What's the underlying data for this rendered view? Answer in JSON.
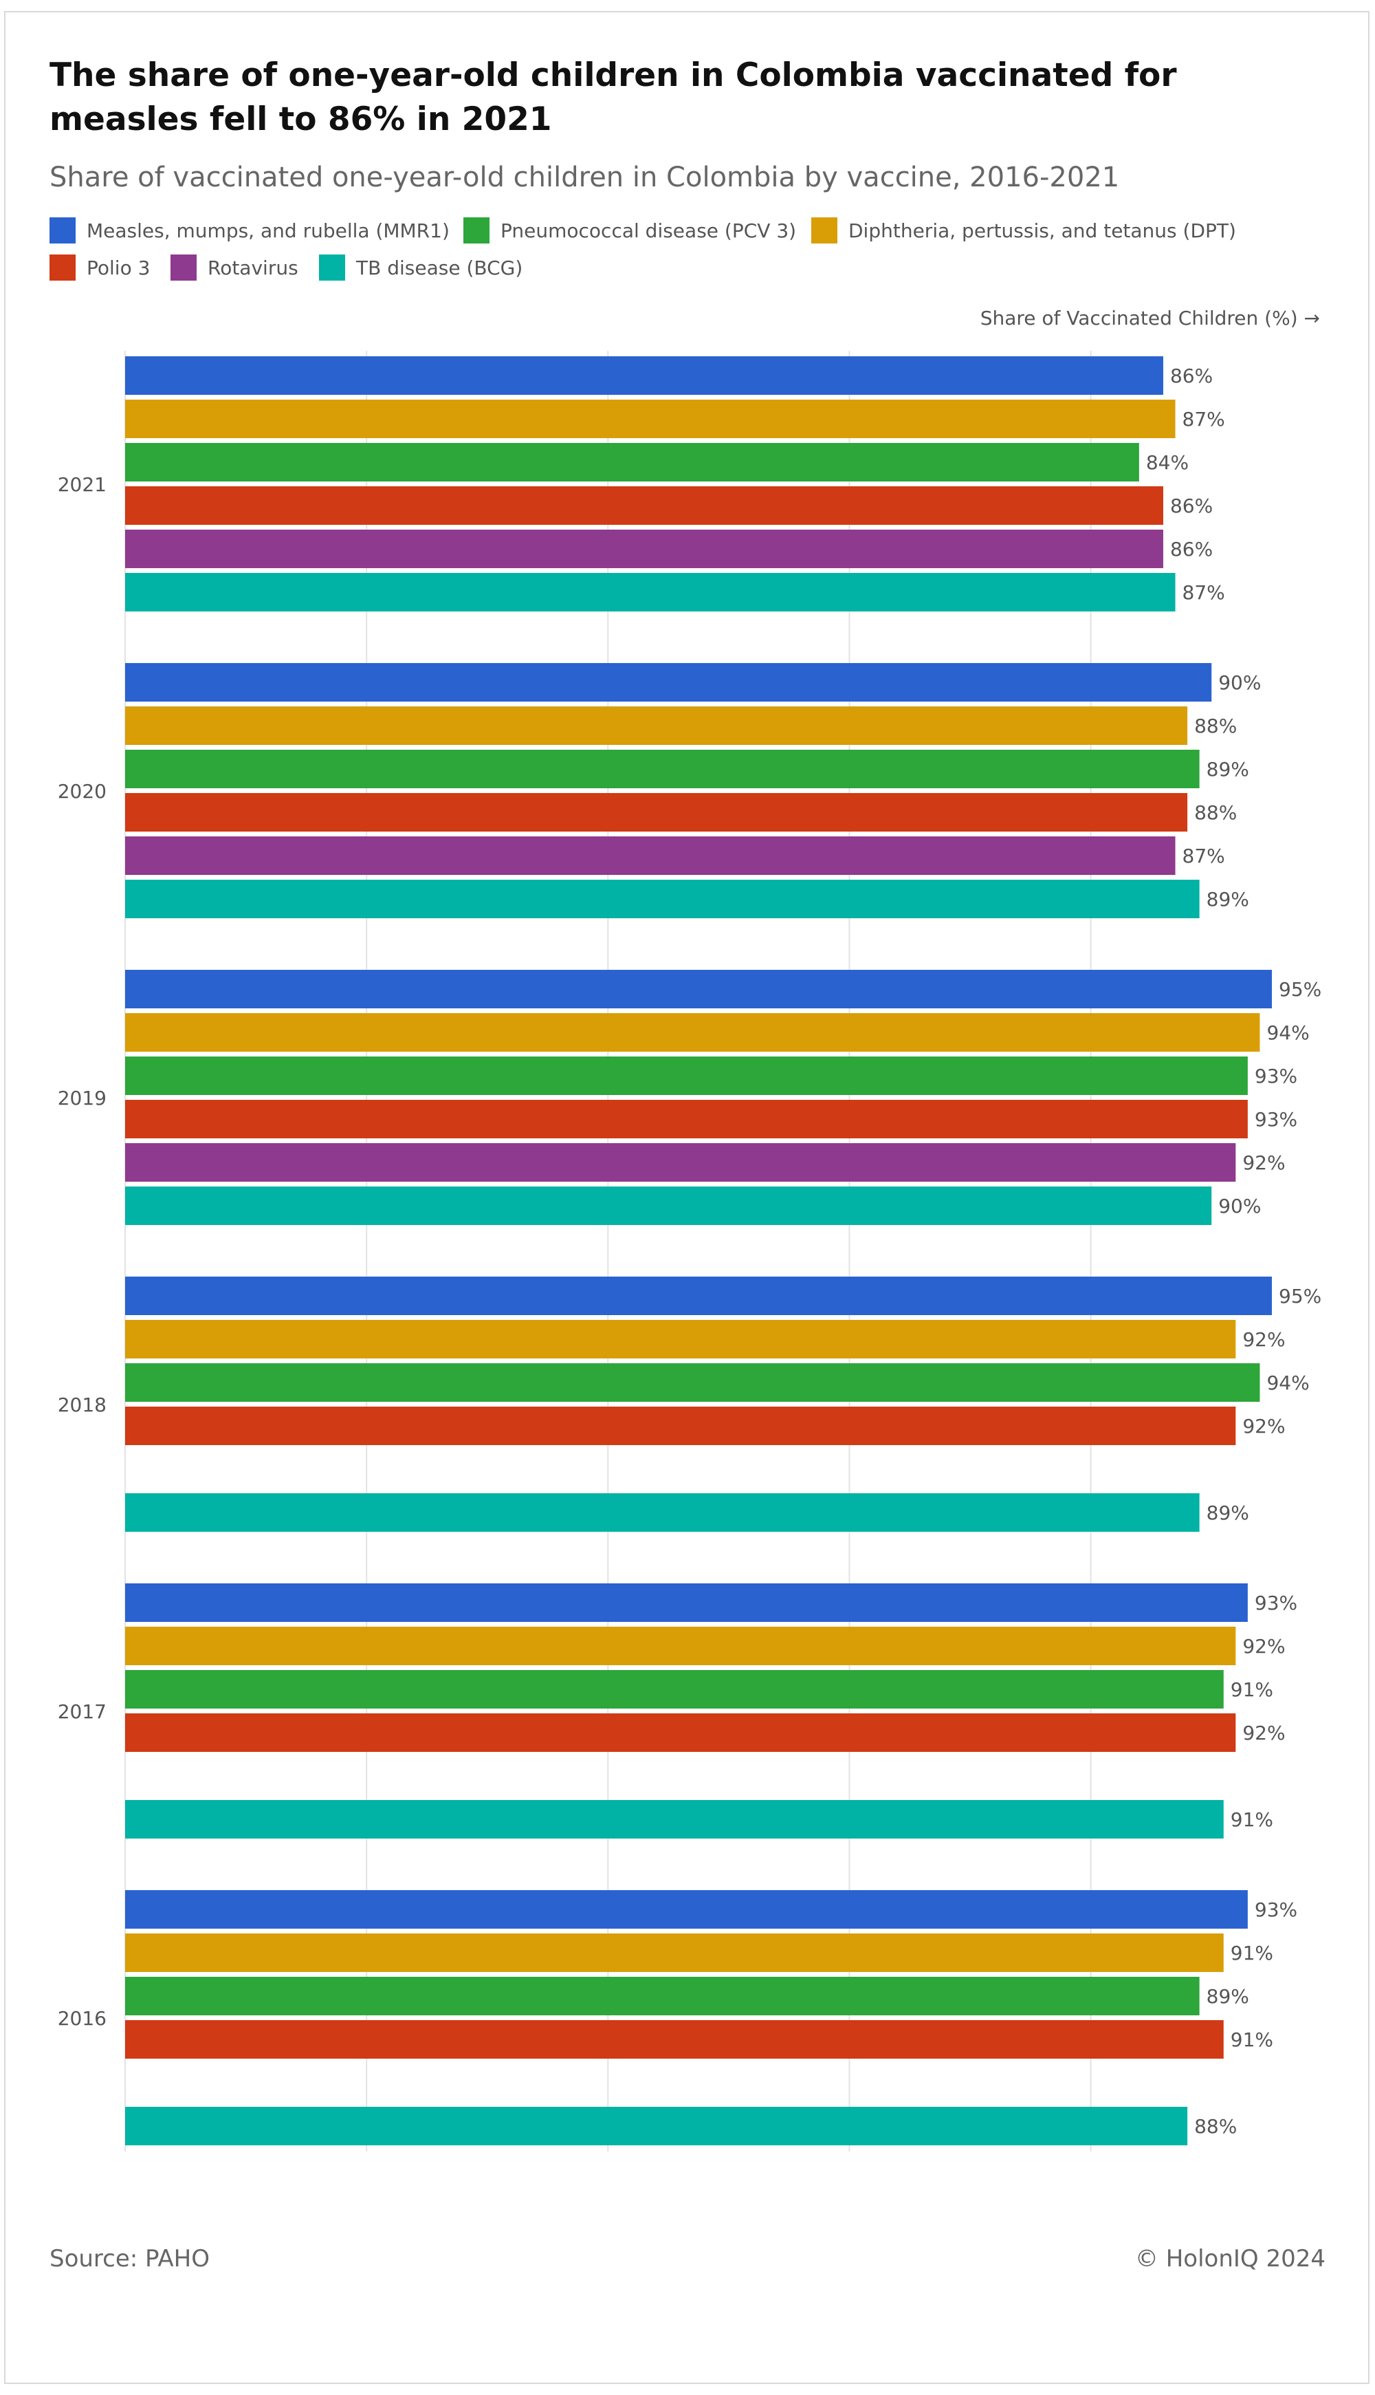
{
  "title": "The share of one-year-old children in Colombia vaccinated for measles fell to 86% in 2021",
  "subtitle": "Share of vaccinated one-year-old children in Colombia by vaccine, 2016-2021",
  "axis_title": "Share of Vaccinated Children (%) →",
  "source": "Source: PAHO",
  "credit": "© HolonIQ 2024",
  "legend": [
    {
      "label": "Measles, mumps, and rubella (MMR1)",
      "color": "#2a62d0"
    },
    {
      "label": "Pneumococcal disease (PCV 3)",
      "color": "#2da63a"
    },
    {
      "label": "Diphtheria, pertussis, and tetanus (DPT)",
      "color": "#d99e06"
    },
    {
      "label": "Polio 3",
      "color": "#d03a14"
    },
    {
      "label": "Rotavirus",
      "color": "#8e3a8e"
    },
    {
      "label": "TB disease (BCG)",
      "color": "#00b3a4"
    }
  ],
  "chart_data": {
    "type": "bar",
    "orientation": "horizontal",
    "categories": [
      "2021",
      "2020",
      "2019",
      "2018",
      "2017",
      "2016"
    ],
    "xlim": [
      0,
      95
    ],
    "value_suffix": "%",
    "grid": true,
    "series": [
      {
        "name": "Measles, mumps, and rubella (MMR1)",
        "color": "#2a62d0",
        "values": [
          86,
          90,
          95,
          95,
          93,
          93
        ]
      },
      {
        "name": "Diphtheria, pertussis, and tetanus (DPT)",
        "color": "#d99e06",
        "values": [
          87,
          88,
          94,
          92,
          92,
          91
        ]
      },
      {
        "name": "Pneumococcal disease (PCV 3)",
        "color": "#2da63a",
        "values": [
          84,
          89,
          93,
          94,
          91,
          89
        ]
      },
      {
        "name": "Polio 3",
        "color": "#d03a14",
        "values": [
          86,
          88,
          93,
          92,
          92,
          91
        ]
      },
      {
        "name": "Rotavirus",
        "color": "#8e3a8e",
        "values": [
          86,
          87,
          92,
          null,
          null,
          null
        ]
      },
      {
        "name": "TB disease (BCG)",
        "color": "#00b3a4",
        "values": [
          87,
          89,
          90,
          89,
          91,
          88
        ]
      }
    ]
  }
}
